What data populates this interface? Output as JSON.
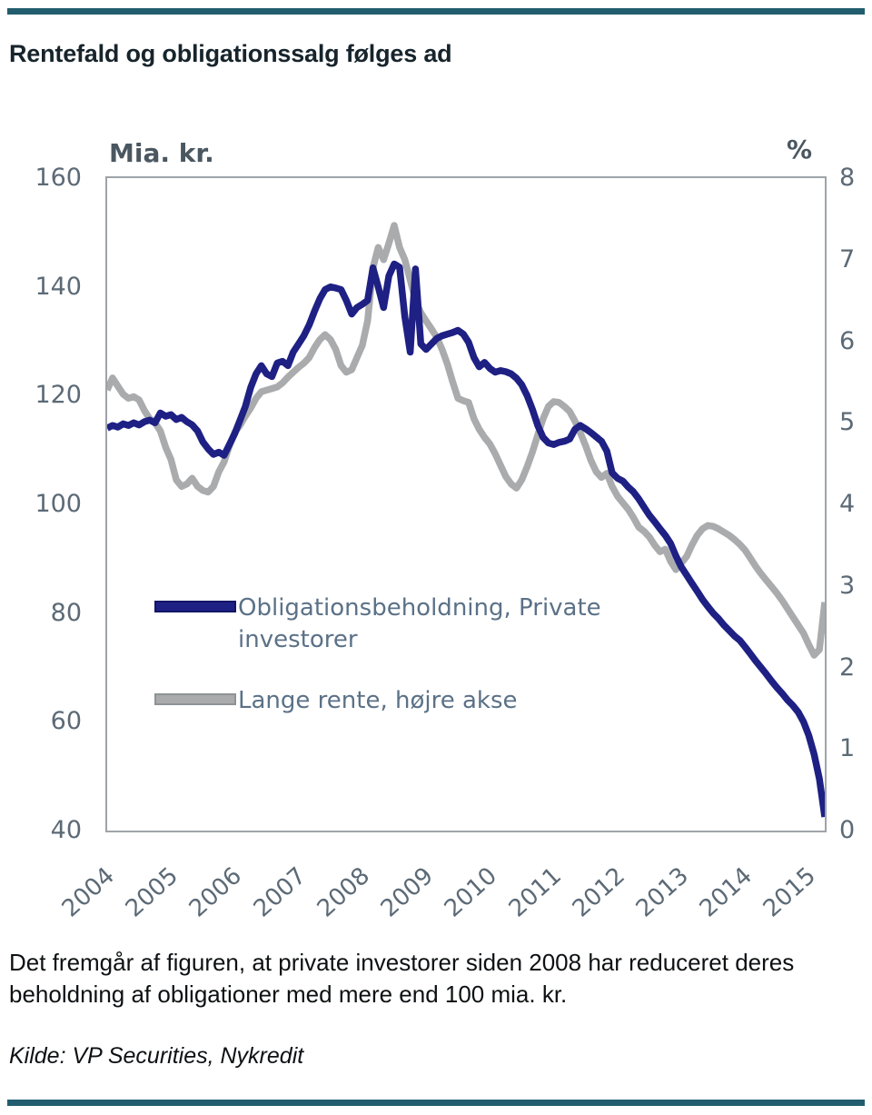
{
  "header": {
    "title": "Rentefald og obligationssalg følges ad"
  },
  "figure": {
    "caption": "Det fremgår af figuren, at private investorer siden 2008 har reduceret deres beholdning af obligationer med mere end 100 mia. kr.",
    "source": "Kilde: VP Securities, Nykredit"
  },
  "colors": {
    "rule_teal": "#215d6e",
    "bond_line": "#1e2084",
    "bond_swatch_border": "#131665",
    "rate_line": "#a9abad",
    "rate_swatch_border": "#8e9396",
    "plot_border": "#9ea4a9",
    "axis_text": "#5c6a76",
    "legend_text": "#5b7187"
  },
  "chart_data": {
    "type": "line",
    "title": "Rentefald og obligationssalg følges ad",
    "grid": false,
    "legend_position": "inside-left-middle",
    "x_axis": {
      "start": 2004.0,
      "end": 2015.25,
      "step_years": 0.0833333,
      "tick_years": [
        2004,
        2005,
        2006,
        2007,
        2008,
        2009,
        2010,
        2011,
        2012,
        2013,
        2014,
        2015
      ]
    },
    "left_axis": {
      "label": "Mia. kr.",
      "min": 40,
      "max": 160,
      "ticks": [
        160,
        140,
        120,
        100,
        80,
        60,
        40
      ]
    },
    "right_axis": {
      "label": "%",
      "min": 0,
      "max": 8,
      "ticks": [
        8,
        7,
        6,
        5,
        4,
        3,
        2,
        1,
        0
      ]
    },
    "series": [
      {
        "name": "Obligationsbeholdning, Private investorer",
        "axis": "left",
        "unit": "mia. kr.",
        "color": "#1e2084",
        "values": [
          114.0,
          114.5,
          114.2,
          114.8,
          114.5,
          115.0,
          114.6,
          115.2,
          115.5,
          115.0,
          116.8,
          116.2,
          116.5,
          115.6,
          116.0,
          115.2,
          114.6,
          113.5,
          111.5,
          110.2,
          109.2,
          109.6,
          109.0,
          111.0,
          113.0,
          115.5,
          118.0,
          121.5,
          124.0,
          125.5,
          124.0,
          123.5,
          126.0,
          126.3,
          125.5,
          128.0,
          129.5,
          131.0,
          133.0,
          135.5,
          137.8,
          139.5,
          140.0,
          139.8,
          139.5,
          137.5,
          135.0,
          136.2,
          136.8,
          137.5,
          143.5,
          140.0,
          136.2,
          142.0,
          144.2,
          143.6,
          134.5,
          128.0,
          143.3,
          129.5,
          128.5,
          129.5,
          130.5,
          131.0,
          131.3,
          131.6,
          132.0,
          131.3,
          129.8,
          127.0,
          125.3,
          126.1,
          125.0,
          124.3,
          124.6,
          124.4,
          124.0,
          123.2,
          122.0,
          120.0,
          117.5,
          114.5,
          112.3,
          111.3,
          111.0,
          111.4,
          111.6,
          112.0,
          113.8,
          114.5,
          113.9,
          113.2,
          112.4,
          111.6,
          109.8,
          105.8,
          104.8,
          104.3,
          103.2,
          102.3,
          101.0,
          99.5,
          98.0,
          96.8,
          95.5,
          94.3,
          92.8,
          90.5,
          88.5,
          87.0,
          85.5,
          84.0,
          82.5,
          81.2,
          80.0,
          79.0,
          77.8,
          76.8,
          75.8,
          75.0,
          73.8,
          72.5,
          71.2,
          70.0,
          68.8,
          67.5,
          66.3,
          65.2,
          64.0,
          63.0,
          61.8,
          60.0,
          57.5,
          54.0,
          49.5,
          42.5
        ]
      },
      {
        "name": "Lange rente, højre akse",
        "axis": "right",
        "unit": "%",
        "color": "#a9abad",
        "values": [
          5.4,
          5.55,
          5.45,
          5.35,
          5.3,
          5.32,
          5.28,
          5.15,
          5.05,
          5.0,
          4.9,
          4.7,
          4.55,
          4.3,
          4.22,
          4.25,
          4.32,
          4.22,
          4.17,
          4.15,
          4.22,
          4.4,
          4.52,
          4.72,
          4.88,
          4.97,
          5.08,
          5.18,
          5.3,
          5.38,
          5.4,
          5.42,
          5.44,
          5.49,
          5.56,
          5.62,
          5.68,
          5.73,
          5.8,
          5.92,
          6.02,
          6.08,
          6.02,
          5.9,
          5.7,
          5.62,
          5.65,
          5.8,
          5.95,
          6.25,
          6.9,
          7.15,
          7.0,
          7.2,
          7.42,
          7.15,
          7.0,
          6.75,
          6.5,
          6.35,
          6.25,
          6.15,
          6.05,
          5.9,
          5.72,
          5.5,
          5.3,
          5.27,
          5.25,
          5.05,
          4.92,
          4.82,
          4.74,
          4.62,
          4.48,
          4.34,
          4.25,
          4.2,
          4.3,
          4.46,
          4.64,
          4.85,
          5.05,
          5.2,
          5.26,
          5.25,
          5.2,
          5.14,
          5.02,
          4.88,
          4.72,
          4.54,
          4.4,
          4.33,
          4.38,
          4.22,
          4.1,
          4.02,
          3.94,
          3.84,
          3.72,
          3.67,
          3.6,
          3.5,
          3.42,
          3.45,
          3.3,
          3.2,
          3.28,
          3.36,
          3.5,
          3.62,
          3.7,
          3.74,
          3.73,
          3.7,
          3.66,
          3.62,
          3.57,
          3.51,
          3.44,
          3.34,
          3.24,
          3.15,
          3.07,
          2.99,
          2.91,
          2.82,
          2.72,
          2.62,
          2.52,
          2.42,
          2.28,
          2.15,
          2.22,
          2.8
        ]
      }
    ]
  }
}
